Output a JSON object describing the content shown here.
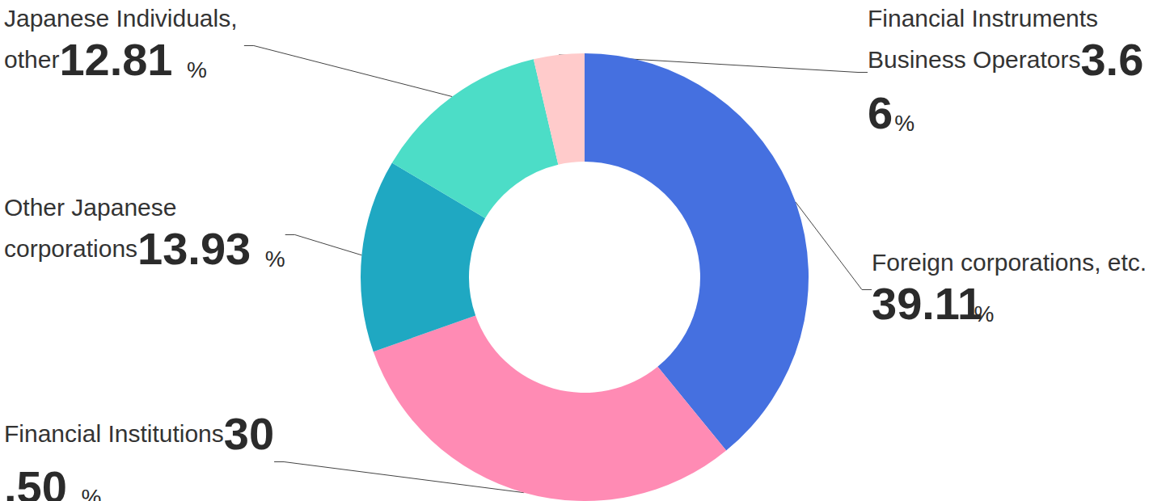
{
  "chart_data": {
    "type": "donut",
    "categories": [
      "Foreign corporations, etc.",
      "Financial Institutions",
      "Other Japanese corporations",
      "Japanese Individuals, other",
      "Financial Instruments Business Operators"
    ],
    "values": [
      39.11,
      30.5,
      13.93,
      12.81,
      3.66
    ],
    "value_labels": [
      "39.11%",
      "30.50%",
      "13.93%",
      "12.81%",
      "3.66%"
    ],
    "colors": [
      "#4570e0",
      "#ff8bb4",
      "#1fa8c2",
      "#4cddc7",
      "#ffcbcb"
    ],
    "data_labels": true
  }
}
